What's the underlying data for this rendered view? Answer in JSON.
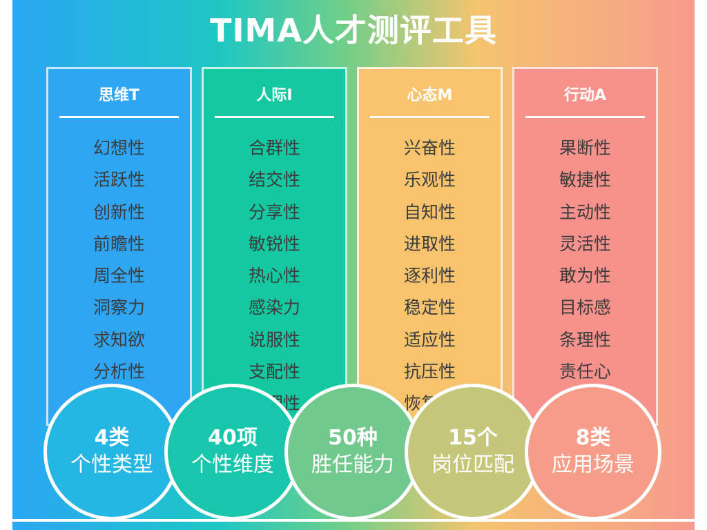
{
  "title": "TIMA人才测评工具",
  "cards": [
    {
      "header": "思维T",
      "color": "#2ea6f3",
      "items": [
        "幻想性",
        "活跃性",
        "创新性",
        "前瞻性",
        "周全性",
        "洞察力",
        "求知欲",
        "分析性",
        "",
        "",
        ""
      ]
    },
    {
      "header": "人际I",
      "color": "#14c9a1",
      "items": [
        "合群性",
        "结交性",
        "分享性",
        "敏锐性",
        "热心性",
        "感染力",
        "说服性",
        "支配性",
        "同理性",
        "",
        ""
      ]
    },
    {
      "header": "心态M",
      "color": "#f7c46d",
      "items": [
        "兴奋性",
        "乐观性",
        "自知性",
        "进取性",
        "逐利性",
        "稳定性",
        "适应性",
        "抗压性",
        "恢复性",
        "",
        ""
      ]
    },
    {
      "header": "行动A",
      "color": "#f7918c",
      "items": [
        "果断性",
        "敏捷性",
        "主动性",
        "灵活性",
        "敢为性",
        "目标感",
        "条理性",
        "责任心",
        "",
        "",
        ""
      ]
    }
  ],
  "stats": [
    {
      "number": "4类",
      "label": "个性类型",
      "color": "#25b6e3"
    },
    {
      "number": "40项",
      "label": "个性维度",
      "color": "#18c7ab"
    },
    {
      "number": "50种",
      "label": "胜任能力",
      "color": "#72c98d"
    },
    {
      "number": "15个",
      "label": "岗位匹配",
      "color": "#c4c779"
    },
    {
      "number": "8类",
      "label": "应用场景",
      "color": "#f59d88"
    }
  ]
}
